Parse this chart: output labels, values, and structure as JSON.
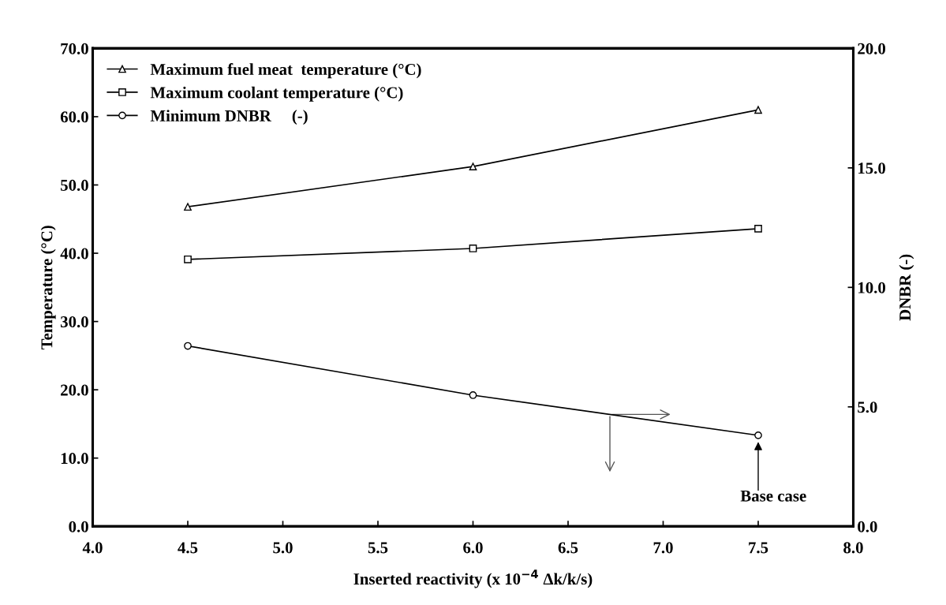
{
  "chart_data": {
    "type": "line",
    "xlabel": "Inserted reactivity (x 10$^{−4}$ Δk/k/s)",
    "ylabel": "Temperature (°C)",
    "y2label": "DNBR (-)",
    "x": [
      4.5,
      6.0,
      7.5
    ],
    "series": [
      {
        "name": "Maximum fuel meat  temperature (°C)",
        "color": "#000000",
        "values": [
          46.8,
          52.7,
          61.0
        ],
        "marker": "triangle"
      },
      {
        "name": "Maximum coolant temperature (°C)",
        "color": "#000000",
        "values": [
          39.1,
          40.7,
          43.6
        ],
        "marker": "square"
      },
      {
        "name": "Minimum DNBR     (-)",
        "color": "#000000",
        "values": [
          7.55,
          5.49,
          3.81
        ],
        "marker": "circle",
        "axis": "y2"
      }
    ],
    "xlim": [
      4.0,
      8.0
    ],
    "xticks": [
      {
        "value": 4.0,
        "label": "4.0"
      },
      {
        "value": 4.5,
        "label": "4.5"
      },
      {
        "value": 5.0,
        "label": "5.0"
      },
      {
        "value": 5.5,
        "label": "5.5"
      },
      {
        "value": 6.0,
        "label": "6.0"
      },
      {
        "value": 6.5,
        "label": "6.5"
      },
      {
        "value": 7.0,
        "label": "7.0"
      },
      {
        "value": 7.5,
        "label": "7.5"
      },
      {
        "value": 8.0,
        "label": "8.0"
      }
    ],
    "ylim": [
      0,
      70
    ],
    "yticks": [
      {
        "value": 0,
        "label": "0.0"
      },
      {
        "value": 10,
        "label": "10.0"
      },
      {
        "value": 20,
        "label": "20.0"
      },
      {
        "value": 30,
        "label": "30.0"
      },
      {
        "value": 40,
        "label": "40.0"
      },
      {
        "value": 50,
        "label": "50.0"
      },
      {
        "value": 60,
        "label": "60.0"
      },
      {
        "value": 70,
        "label": "70.0"
      }
    ],
    "y2lim": [
      0,
      20
    ],
    "y2ticks": [
      {
        "value": 0,
        "label": "0.0"
      },
      {
        "value": 5,
        "label": "5.0"
      },
      {
        "value": 10,
        "label": "10.0"
      },
      {
        "value": 15,
        "label": "15.0"
      },
      {
        "value": 20,
        "label": "20.0"
      }
    ],
    "annotations": [
      "Base case"
    ],
    "legend": "top left",
    "grid": false,
    "line_style": "solid"
  }
}
